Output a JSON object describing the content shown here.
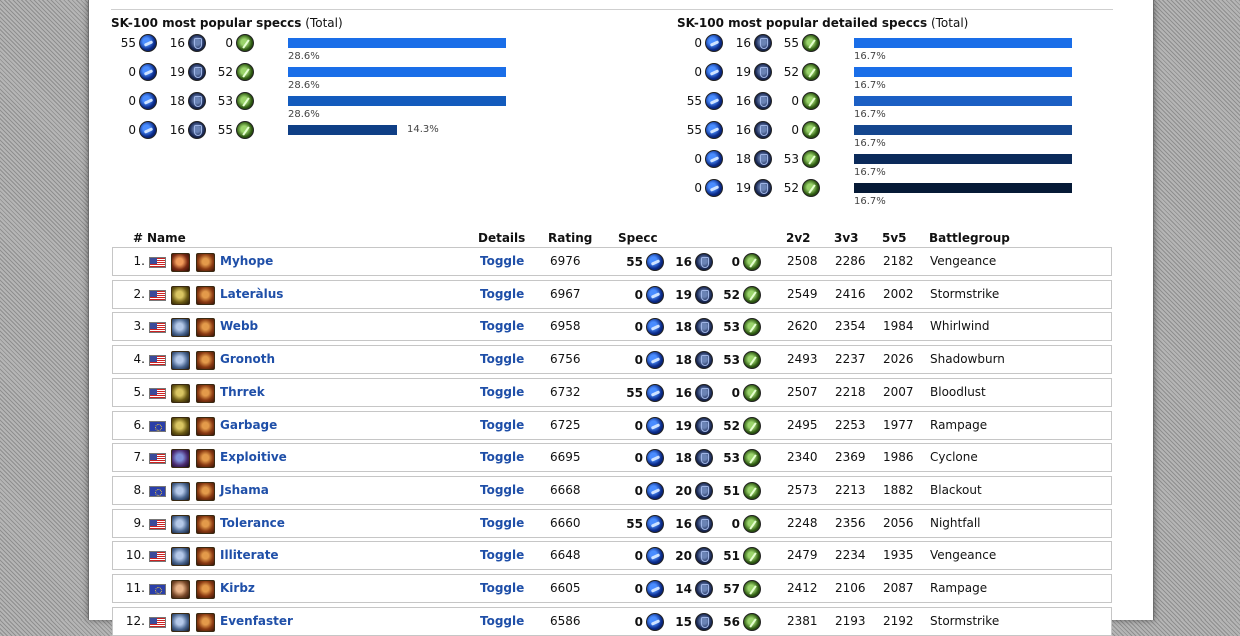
{
  "stats_left": {
    "title_bold": "SK-100 most popular speccs",
    "title_suffix": "(Total)",
    "rows": [
      {
        "a": "55",
        "b": "16",
        "c": "0",
        "pct": "28.6%",
        "fraction": 0.286,
        "color": "#1a6ee8"
      },
      {
        "a": "0",
        "b": "19",
        "c": "52",
        "pct": "28.6%",
        "fraction": 0.286,
        "color": "#1a6ee8"
      },
      {
        "a": "0",
        "b": "18",
        "c": "53",
        "pct": "28.6%",
        "fraction": 0.286,
        "color": "#135bbd"
      },
      {
        "a": "0",
        "b": "16",
        "c": "55",
        "pct": "14.3%",
        "fraction": 0.143,
        "color": "#0f3f86"
      }
    ]
  },
  "stats_right": {
    "title_bold": "SK-100 most popular detailed speccs",
    "title_suffix": "(Total)",
    "rows": [
      {
        "a": "0",
        "b": "16",
        "c": "55",
        "pct": "16.7%",
        "fraction": 0.167,
        "color": "#1a6ee8"
      },
      {
        "a": "0",
        "b": "19",
        "c": "52",
        "pct": "16.7%",
        "fraction": 0.167,
        "color": "#1a6ee8"
      },
      {
        "a": "55",
        "b": "16",
        "c": "0",
        "pct": "16.7%",
        "fraction": 0.167,
        "color": "#1b5fc4"
      },
      {
        "a": "55",
        "b": "16",
        "c": "0",
        "pct": "16.7%",
        "fraction": 0.167,
        "color": "#14468e"
      },
      {
        "a": "0",
        "b": "18",
        "c": "53",
        "pct": "16.7%",
        "fraction": 0.167,
        "color": "#0b2a5a"
      },
      {
        "a": "0",
        "b": "19",
        "c": "52",
        "pct": "16.7%",
        "fraction": 0.167,
        "color": "#061a36"
      }
    ]
  },
  "table": {
    "headers": {
      "rank": "#",
      "name": "Name",
      "details": "Details",
      "rating": "Rating",
      "specc": "Specc",
      "v2": "2v2",
      "v3": "3v3",
      "v5": "5v5",
      "battlegroup": "Battlegroup"
    },
    "rows": [
      {
        "rank": "1.",
        "flag": "us",
        "race": "orc",
        "name": "Myhope",
        "toggle": "Toggle",
        "rating": "6976",
        "a": "55",
        "b": "16",
        "c": "0",
        "v2": "2508",
        "v3": "2286",
        "v5": "2182",
        "bg": "Vengeance"
      },
      {
        "rank": "2.",
        "flag": "us",
        "race": "troll",
        "name": "Lateràlus",
        "toggle": "Toggle",
        "rating": "6967",
        "a": "0",
        "b": "19",
        "c": "52",
        "v2": "2549",
        "v3": "2416",
        "v5": "2002",
        "bg": "Stormstrike"
      },
      {
        "rank": "3.",
        "flag": "us",
        "race": "dwarf",
        "name": "Webb",
        "toggle": "Toggle",
        "rating": "6958",
        "a": "0",
        "b": "18",
        "c": "53",
        "v2": "2620",
        "v3": "2354",
        "v5": "1984",
        "bg": "Whirlwind"
      },
      {
        "rank": "4.",
        "flag": "us",
        "race": "dwarf",
        "name": "Gronoth",
        "toggle": "Toggle",
        "rating": "6756",
        "a": "0",
        "b": "18",
        "c": "53",
        "v2": "2493",
        "v3": "2237",
        "v5": "2026",
        "bg": "Shadowburn"
      },
      {
        "rank": "5.",
        "flag": "us",
        "race": "troll",
        "name": "Thrrek",
        "toggle": "Toggle",
        "rating": "6732",
        "a": "55",
        "b": "16",
        "c": "0",
        "v2": "2507",
        "v3": "2218",
        "v5": "2007",
        "bg": "Bloodlust"
      },
      {
        "rank": "6.",
        "flag": "eu",
        "race": "troll",
        "name": "Garbage",
        "toggle": "Toggle",
        "rating": "6725",
        "a": "0",
        "b": "19",
        "c": "52",
        "v2": "2495",
        "v3": "2253",
        "v5": "1977",
        "bg": "Rampage"
      },
      {
        "rank": "7.",
        "flag": "us",
        "race": "night",
        "name": "Exploitive",
        "toggle": "Toggle",
        "rating": "6695",
        "a": "0",
        "b": "18",
        "c": "53",
        "v2": "2340",
        "v3": "2369",
        "v5": "1986",
        "bg": "Cyclone"
      },
      {
        "rank": "8.",
        "flag": "eu",
        "race": "dwarf",
        "name": "Jshama",
        "toggle": "Toggle",
        "rating": "6668",
        "a": "0",
        "b": "20",
        "c": "51",
        "v2": "2573",
        "v3": "2213",
        "v5": "1882",
        "bg": "Blackout"
      },
      {
        "rank": "9.",
        "flag": "us",
        "race": "dwarf",
        "name": "Tolerance",
        "toggle": "Toggle",
        "rating": "6660",
        "a": "55",
        "b": "16",
        "c": "0",
        "v2": "2248",
        "v3": "2356",
        "v5": "2056",
        "bg": "Nightfall"
      },
      {
        "rank": "10.",
        "flag": "us",
        "race": "dwarf",
        "name": "Illiterate",
        "toggle": "Toggle",
        "rating": "6648",
        "a": "0",
        "b": "20",
        "c": "51",
        "v2": "2479",
        "v3": "2234",
        "v5": "1935",
        "bg": "Vengeance"
      },
      {
        "rank": "11.",
        "flag": "eu",
        "race": "tauren",
        "name": "Kirbz",
        "toggle": "Toggle",
        "rating": "6605",
        "a": "0",
        "b": "14",
        "c": "57",
        "v2": "2412",
        "v3": "2106",
        "v5": "2087",
        "bg": "Rampage"
      },
      {
        "rank": "12.",
        "flag": "us",
        "race": "dwarf",
        "name": "Evenfaster",
        "toggle": "Toggle",
        "rating": "6586",
        "a": "0",
        "b": "15",
        "c": "56",
        "v2": "2381",
        "v3": "2193",
        "v5": "2192",
        "bg": "Stormstrike"
      }
    ]
  }
}
